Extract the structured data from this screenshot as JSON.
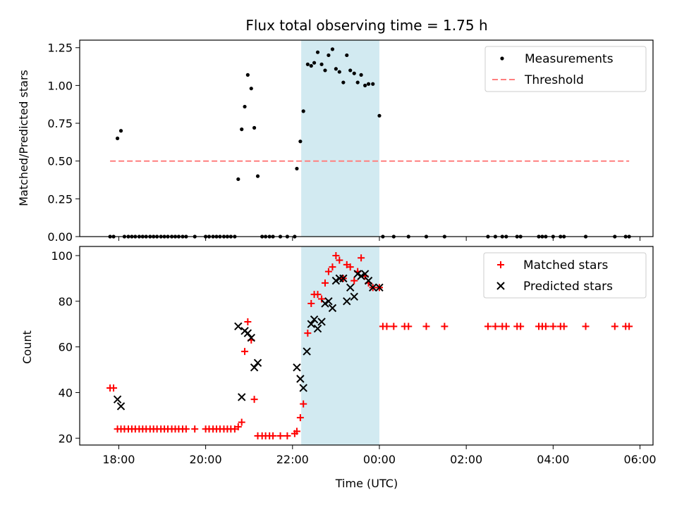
{
  "chart_data": [
    {
      "type": "scatter",
      "title": "Flux total observing time = 1.75 h",
      "ylabel": "Matched/Predicted stars",
      "xlabel": "",
      "ylim": [
        0,
        1.3
      ],
      "yticks": [
        "0.00",
        "0.25",
        "0.50",
        "0.75",
        "1.00",
        "1.25"
      ],
      "xlim_hours": [
        17.1,
        30.3
      ],
      "highlight_span_hours": [
        22.2,
        24.0
      ],
      "highlight_color": "#add8e6",
      "grid": false,
      "legend_placement": "top-right",
      "series": [
        {
          "name": "Measurements",
          "marker": "dot",
          "color": "#000000",
          "points": [
            [
              17.8,
              0
            ],
            [
              17.88,
              0
            ],
            [
              17.97,
              0.65
            ],
            [
              18.05,
              0.7
            ],
            [
              18.13,
              0
            ],
            [
              18.22,
              0
            ],
            [
              18.3,
              0
            ],
            [
              18.38,
              0
            ],
            [
              18.47,
              0
            ],
            [
              18.55,
              0
            ],
            [
              18.63,
              0
            ],
            [
              18.72,
              0
            ],
            [
              18.8,
              0
            ],
            [
              18.88,
              0
            ],
            [
              18.97,
              0
            ],
            [
              19.05,
              0
            ],
            [
              19.13,
              0
            ],
            [
              19.22,
              0
            ],
            [
              19.3,
              0
            ],
            [
              19.38,
              0
            ],
            [
              19.47,
              0
            ],
            [
              19.55,
              0
            ],
            [
              19.75,
              0
            ],
            [
              20.0,
              0
            ],
            [
              20.08,
              0
            ],
            [
              20.17,
              0
            ],
            [
              20.25,
              0
            ],
            [
              20.33,
              0
            ],
            [
              20.42,
              0
            ],
            [
              20.5,
              0
            ],
            [
              20.58,
              0
            ],
            [
              20.67,
              0
            ],
            [
              20.75,
              0.38
            ],
            [
              20.83,
              0.71
            ],
            [
              20.9,
              0.86
            ],
            [
              20.97,
              1.07
            ],
            [
              21.05,
              0.98
            ],
            [
              21.12,
              0.72
            ],
            [
              21.2,
              0.4
            ],
            [
              21.3,
              0
            ],
            [
              21.38,
              0
            ],
            [
              21.47,
              0
            ],
            [
              21.55,
              0
            ],
            [
              21.72,
              0
            ],
            [
              21.88,
              0
            ],
            [
              22.05,
              0
            ],
            [
              22.1,
              0.45
            ],
            [
              22.18,
              0.63
            ],
            [
              22.25,
              0.83
            ],
            [
              22.35,
              1.14
            ],
            [
              22.43,
              1.13
            ],
            [
              22.5,
              1.15
            ],
            [
              22.58,
              1.22
            ],
            [
              22.67,
              1.14
            ],
            [
              22.75,
              1.1
            ],
            [
              22.83,
              1.2
            ],
            [
              22.92,
              1.24
            ],
            [
              23.0,
              1.11
            ],
            [
              23.08,
              1.09
            ],
            [
              23.17,
              1.02
            ],
            [
              23.25,
              1.2
            ],
            [
              23.33,
              1.1
            ],
            [
              23.42,
              1.08
            ],
            [
              23.5,
              1.02
            ],
            [
              23.58,
              1.07
            ],
            [
              23.67,
              1.0
            ],
            [
              23.75,
              1.01
            ],
            [
              23.85,
              1.01
            ],
            [
              24.0,
              0.8
            ],
            [
              24.08,
              0
            ],
            [
              24.33,
              0
            ],
            [
              24.67,
              0
            ],
            [
              25.08,
              0
            ],
            [
              25.5,
              0
            ],
            [
              26.5,
              0
            ],
            [
              26.67,
              0
            ],
            [
              26.83,
              0
            ],
            [
              26.92,
              0
            ],
            [
              27.17,
              0
            ],
            [
              27.25,
              0
            ],
            [
              27.67,
              0
            ],
            [
              27.75,
              0
            ],
            [
              27.83,
              0
            ],
            [
              28.0,
              0
            ],
            [
              28.17,
              0
            ],
            [
              28.25,
              0
            ],
            [
              28.75,
              0
            ],
            [
              29.42,
              0
            ],
            [
              29.67,
              0
            ],
            [
              29.75,
              0
            ]
          ]
        },
        {
          "name": "Threshold",
          "marker": "dashed-line",
          "color": "#ff7f7f",
          "points": [
            [
              17.8,
              0.5
            ],
            [
              29.75,
              0.5
            ]
          ]
        }
      ]
    },
    {
      "type": "scatter",
      "title": "",
      "ylabel": "Count",
      "xlabel": "Time (UTC)",
      "ylim": [
        17,
        104
      ],
      "yticks": [
        "20",
        "40",
        "60",
        "80",
        "100"
      ],
      "xlim_hours": [
        17.1,
        30.3
      ],
      "xticks": [
        {
          "h": 18,
          "label": "18:00"
        },
        {
          "h": 20,
          "label": "20:00"
        },
        {
          "h": 22,
          "label": "22:00"
        },
        {
          "h": 24,
          "label": "00:00"
        },
        {
          "h": 26,
          "label": "02:00"
        },
        {
          "h": 28,
          "label": "04:00"
        },
        {
          "h": 30,
          "label": "06:00"
        }
      ],
      "highlight_span_hours": [
        22.2,
        24.0
      ],
      "highlight_color": "#add8e6",
      "grid": false,
      "legend_placement": "top-right",
      "series": [
        {
          "name": "Matched stars",
          "marker": "plus",
          "color": "#ff0000",
          "points": [
            [
              17.8,
              42
            ],
            [
              17.88,
              42
            ],
            [
              17.97,
              24
            ],
            [
              18.05,
              24
            ],
            [
              18.13,
              24
            ],
            [
              18.22,
              24
            ],
            [
              18.3,
              24
            ],
            [
              18.38,
              24
            ],
            [
              18.47,
              24
            ],
            [
              18.55,
              24
            ],
            [
              18.63,
              24
            ],
            [
              18.72,
              24
            ],
            [
              18.8,
              24
            ],
            [
              18.88,
              24
            ],
            [
              18.97,
              24
            ],
            [
              19.05,
              24
            ],
            [
              19.13,
              24
            ],
            [
              19.22,
              24
            ],
            [
              19.3,
              24
            ],
            [
              19.38,
              24
            ],
            [
              19.47,
              24
            ],
            [
              19.55,
              24
            ],
            [
              19.75,
              24
            ],
            [
              20.0,
              24
            ],
            [
              20.08,
              24
            ],
            [
              20.17,
              24
            ],
            [
              20.25,
              24
            ],
            [
              20.33,
              24
            ],
            [
              20.42,
              24
            ],
            [
              20.5,
              24
            ],
            [
              20.58,
              24
            ],
            [
              20.67,
              24
            ],
            [
              20.75,
              25
            ],
            [
              20.83,
              27
            ],
            [
              20.9,
              58
            ],
            [
              20.97,
              71
            ],
            [
              21.05,
              63
            ],
            [
              21.12,
              37
            ],
            [
              21.2,
              21
            ],
            [
              21.3,
              21
            ],
            [
              21.38,
              21
            ],
            [
              21.47,
              21
            ],
            [
              21.55,
              21
            ],
            [
              21.72,
              21
            ],
            [
              21.88,
              21
            ],
            [
              22.05,
              22
            ],
            [
              22.1,
              23
            ],
            [
              22.18,
              29
            ],
            [
              22.25,
              35
            ],
            [
              22.35,
              66
            ],
            [
              22.43,
              79
            ],
            [
              22.5,
              83
            ],
            [
              22.58,
              83
            ],
            [
              22.67,
              81
            ],
            [
              22.75,
              88
            ],
            [
              22.83,
              93
            ],
            [
              22.92,
              95
            ],
            [
              23.0,
              100
            ],
            [
              23.08,
              98
            ],
            [
              23.17,
              90
            ],
            [
              23.25,
              96
            ],
            [
              23.33,
              95
            ],
            [
              23.42,
              89
            ],
            [
              23.5,
              93
            ],
            [
              23.58,
              99
            ],
            [
              23.67,
              91
            ],
            [
              23.75,
              88
            ],
            [
              23.85,
              86
            ],
            [
              24.0,
              86
            ],
            [
              24.08,
              69
            ],
            [
              24.17,
              69
            ],
            [
              24.33,
              69
            ],
            [
              24.58,
              69
            ],
            [
              24.67,
              69
            ],
            [
              25.08,
              69
            ],
            [
              25.5,
              69
            ],
            [
              26.5,
              69
            ],
            [
              26.67,
              69
            ],
            [
              26.83,
              69
            ],
            [
              26.92,
              69
            ],
            [
              27.17,
              69
            ],
            [
              27.25,
              69
            ],
            [
              27.67,
              69
            ],
            [
              27.75,
              69
            ],
            [
              27.83,
              69
            ],
            [
              28.0,
              69
            ],
            [
              28.17,
              69
            ],
            [
              28.25,
              69
            ],
            [
              28.75,
              69
            ],
            [
              29.42,
              69
            ],
            [
              29.67,
              69
            ],
            [
              29.75,
              69
            ]
          ]
        },
        {
          "name": "Predicted stars",
          "marker": "x",
          "color": "#000000",
          "points": [
            [
              17.97,
              37
            ],
            [
              18.05,
              34
            ],
            [
              20.75,
              69
            ],
            [
              20.83,
              38
            ],
            [
              20.9,
              67
            ],
            [
              20.97,
              66
            ],
            [
              21.05,
              64
            ],
            [
              21.12,
              51
            ],
            [
              21.2,
              53
            ],
            [
              22.1,
              51
            ],
            [
              22.18,
              46
            ],
            [
              22.25,
              42
            ],
            [
              22.33,
              58
            ],
            [
              22.43,
              70
            ],
            [
              22.5,
              72
            ],
            [
              22.58,
              68
            ],
            [
              22.67,
              71
            ],
            [
              22.75,
              79
            ],
            [
              22.83,
              80
            ],
            [
              22.92,
              77
            ],
            [
              23.0,
              89
            ],
            [
              23.08,
              90
            ],
            [
              23.17,
              90
            ],
            [
              23.25,
              80
            ],
            [
              23.33,
              86
            ],
            [
              23.42,
              82
            ],
            [
              23.5,
              92
            ],
            [
              23.58,
              91
            ],
            [
              23.67,
              92
            ],
            [
              23.75,
              89
            ],
            [
              23.85,
              86
            ],
            [
              24.0,
              86
            ]
          ]
        }
      ]
    }
  ]
}
